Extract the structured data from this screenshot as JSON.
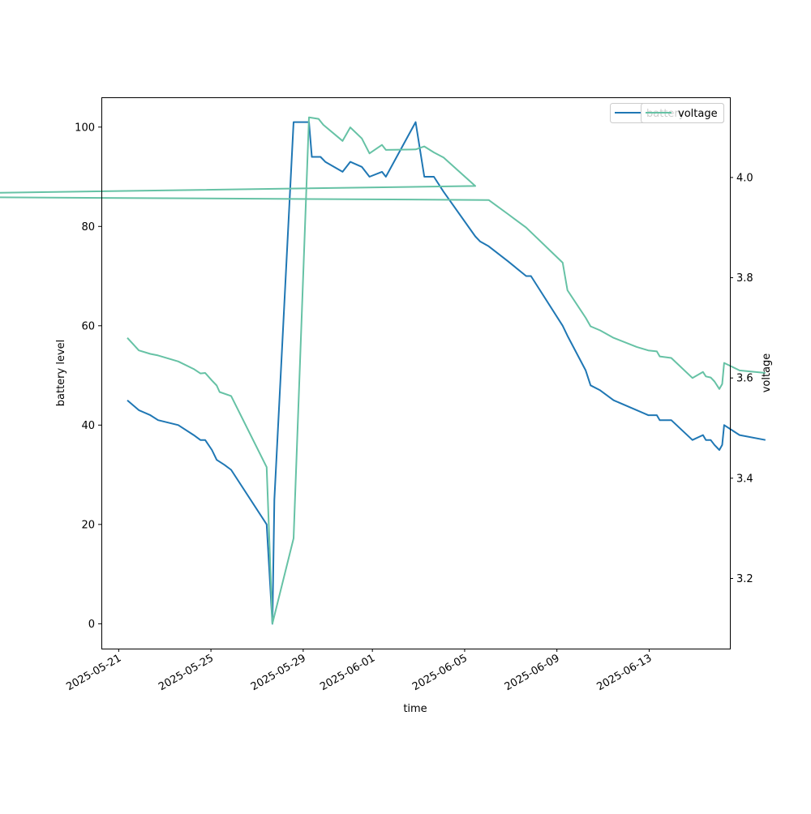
{
  "chart_data": {
    "type": "line",
    "xlabel": "time",
    "ylabel_left": "battery level",
    "ylabel_right": "voltage",
    "x_range": [
      "2025-05-20T06:00",
      "2025-06-16T12:00"
    ],
    "ylim_left": [
      -5,
      106
    ],
    "ylim_right": [
      3.06,
      4.16
    ],
    "x_ticks": [
      "2025-05-21",
      "2025-05-25",
      "2025-05-29",
      "2025-06-01",
      "2025-06-05",
      "2025-06-09",
      "2025-06-13"
    ],
    "yticks_left": [
      "0",
      "20",
      "40",
      "60",
      "80",
      "100"
    ],
    "yticks_right": [
      "3.2",
      "3.4",
      "3.6",
      "3.8",
      "4.0"
    ],
    "grid": false,
    "legends": [
      {
        "placement": "top-right",
        "entries": [
          "battery"
        ],
        "obscured": true
      },
      {
        "placement": "top-right",
        "entries": [
          "voltage"
        ]
      }
    ],
    "series": [
      {
        "name": "battery",
        "axis": "left",
        "color": "#1f77b4",
        "points": [
          [
            "2025-05-21T09:00",
            45
          ],
          [
            "2025-05-21T21:00",
            43
          ],
          [
            "2025-05-22T09:00",
            42
          ],
          [
            "2025-05-22T17:00",
            41
          ],
          [
            "2025-05-23T14:00",
            40
          ],
          [
            "2025-05-24T06:00",
            38
          ],
          [
            "2025-05-24T13:00",
            37
          ],
          [
            "2025-05-24T18:00",
            37
          ],
          [
            "2025-05-25T01:00",
            35
          ],
          [
            "2025-05-25T06:00",
            33
          ],
          [
            "2025-05-25T14:00",
            32
          ],
          [
            "2025-05-25T21:00",
            31
          ],
          [
            "2025-05-27T10:00",
            20
          ],
          [
            "2025-05-27T16:00",
            0
          ],
          [
            "2025-05-27T18:00",
            25
          ],
          [
            "2025-05-28T14:00",
            101
          ],
          [
            "2025-05-29T06:00",
            101
          ],
          [
            "2025-05-29T09:00",
            94
          ],
          [
            "2025-05-29T18:00",
            94
          ],
          [
            "2025-05-29T23:00",
            93
          ],
          [
            "2025-05-30T17:00",
            91
          ],
          [
            "2025-05-31T01:00",
            93
          ],
          [
            "2025-05-31T13:00",
            92
          ],
          [
            "2025-05-31T21:00",
            90
          ],
          [
            "2025-06-01T10:00",
            91
          ],
          [
            "2025-06-01T14:00",
            90
          ],
          [
            "2025-06-02T21:00",
            101
          ],
          [
            "2025-06-03T06:00",
            90
          ],
          [
            "2025-06-03T16:00",
            90
          ],
          [
            "2025-06-04T02:00",
            87
          ],
          [
            "2025-06-05T11:00",
            78
          ],
          [
            "2025-06-05T16:00",
            77
          ],
          [
            "2025-06-06T01:00",
            76
          ],
          [
            "2025-06-06T21:00",
            73
          ],
          [
            "2025-06-07T16:00",
            70
          ],
          [
            "2025-06-07T21:00",
            70
          ],
          [
            "2025-06-09T06:00",
            60
          ],
          [
            "2025-06-09T11:00",
            58
          ],
          [
            "2025-06-10T06:00",
            51
          ],
          [
            "2025-06-10T11:00",
            48
          ],
          [
            "2025-06-10T21:00",
            47
          ],
          [
            "2025-06-11T11:00",
            45
          ],
          [
            "2025-06-12T11:00",
            43
          ],
          [
            "2025-06-12T23:00",
            42
          ],
          [
            "2025-06-13T08:00",
            42
          ],
          [
            "2025-06-13T11:00",
            41
          ],
          [
            "2025-06-13T23:00",
            41
          ],
          [
            "2025-06-14T21:00",
            37
          ],
          [
            "2025-06-15T08:00",
            38
          ],
          [
            "2025-06-15T11:00",
            37
          ],
          [
            "2025-06-15T16:00",
            37
          ],
          [
            "2025-06-15T20:00",
            36
          ],
          [
            "2025-06-16T01:00",
            35
          ],
          [
            "2025-06-16T04:00",
            36
          ],
          [
            "2025-06-16T06:00",
            40
          ],
          [
            "2025-06-16T22:00",
            38
          ],
          [
            "2025-06-18T01:00",
            37
          ]
        ]
      },
      {
        "name": "voltage",
        "axis": "right",
        "color": "#66c2a5",
        "points": [
          [
            "2025-05-21T09:00",
            3.68
          ],
          [
            "2025-05-21T21:00",
            3.655
          ],
          [
            "2025-05-22T09:00",
            3.648
          ],
          [
            "2025-05-22T17:00",
            3.645
          ],
          [
            "2025-05-23T14:00",
            3.633
          ],
          [
            "2025-05-24T06:00",
            3.618
          ],
          [
            "2025-05-24T13:00",
            3.609
          ],
          [
            "2025-05-24T18:00",
            3.61
          ],
          [
            "2025-05-25T01:00",
            3.595
          ],
          [
            "2025-05-25T06:00",
            3.585
          ],
          [
            "2025-05-25T09:00",
            3.572
          ],
          [
            "2025-05-25T21:00",
            3.564
          ],
          [
            "2025-05-27T10:00",
            3.422
          ],
          [
            "2025-05-27T16:00",
            3.11
          ],
          [
            "2025-05-28T14:00",
            3.28
          ],
          [
            "2025-05-29T06:00",
            4.12
          ],
          [
            "2025-05-29T16:00",
            4.117
          ],
          [
            "2025-05-29T21:00",
            4.105
          ],
          [
            "2025-05-30T17:00",
            4.073
          ],
          [
            "2025-05-31T01:00",
            4.1
          ],
          [
            "2025-05-31T13:00",
            4.078
          ],
          [
            "2025-05-31T21:00",
            4.048
          ],
          [
            "2025-06-01T10:00",
            4.065
          ],
          [
            "2025-06-01T14:00",
            4.055
          ],
          [
            "2025-06-02T21:00",
            4.056
          ],
          [
            "2025-06-03T06:00",
            4.062
          ],
          [
            "2025-06-03T16:00",
            4.05
          ],
          [
            "2025-06-04T02:00",
            4.04
          ],
          [
            "2025-06-05T11:00",
            3.983
          ],
          [
            "2025-05-05T16:00",
            3.963
          ],
          [
            "2025-06-06T01:00",
            3.955
          ],
          [
            "2025-06-06T21:00",
            3.927
          ],
          [
            "2025-06-07T16:00",
            3.9
          ],
          [
            "2025-06-09T06:00",
            3.83
          ],
          [
            "2025-06-09T11:00",
            3.775
          ],
          [
            "2025-06-10T06:00",
            3.72
          ],
          [
            "2025-06-10T11:00",
            3.703
          ],
          [
            "2025-06-10T21:00",
            3.695
          ],
          [
            "2025-06-11T11:00",
            3.68
          ],
          [
            "2025-06-12T11:00",
            3.662
          ],
          [
            "2025-06-12T23:00",
            3.655
          ],
          [
            "2025-06-13T08:00",
            3.653
          ],
          [
            "2025-06-13T11:00",
            3.643
          ],
          [
            "2025-06-13T23:00",
            3.64
          ],
          [
            "2025-06-14T21:00",
            3.6
          ],
          [
            "2025-06-15T08:00",
            3.612
          ],
          [
            "2025-06-15T11:00",
            3.603
          ],
          [
            "2025-06-15T16:00",
            3.601
          ],
          [
            "2025-06-15T20:00",
            3.593
          ],
          [
            "2025-06-16T01:00",
            3.578
          ],
          [
            "2025-06-16T04:00",
            3.588
          ],
          [
            "2025-06-16T06:00",
            3.63
          ],
          [
            "2025-06-16T22:00",
            3.615
          ],
          [
            "2025-06-18T01:00",
            3.61
          ]
        ]
      }
    ]
  }
}
